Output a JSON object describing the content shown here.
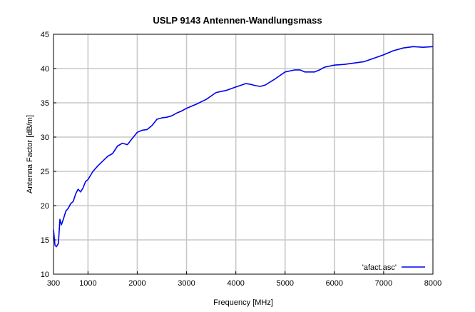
{
  "chart_data": {
    "type": "line",
    "title": "USLP 9143 Antennen-Wandlungsmass",
    "xlabel": "Frequency [MHz]",
    "ylabel": "Antenna Factor [dB/m]",
    "xlim": [
      300,
      8000
    ],
    "ylim": [
      10,
      45
    ],
    "xticks": [
      300,
      1000,
      2000,
      3000,
      4000,
      5000,
      6000,
      7000,
      8000
    ],
    "xtick_labels": [
      "300",
      "1000",
      "2000",
      "3000",
      "4000",
      "5000",
      "6000",
      "7000",
      "8000"
    ],
    "yticks": [
      10,
      15,
      20,
      25,
      30,
      35,
      40,
      45
    ],
    "ytick_labels": [
      "10",
      "15",
      "20",
      "25",
      "30",
      "35",
      "40",
      "45"
    ],
    "grid": true,
    "legend_position": "bottom-right",
    "series": [
      {
        "name": "'afact.asc'",
        "color": "#0000ee",
        "x": [
          300,
          330,
          360,
          400,
          430,
          460,
          500,
          550,
          600,
          650,
          700,
          750,
          800,
          850,
          900,
          950,
          1000,
          1100,
          1200,
          1300,
          1400,
          1500,
          1600,
          1700,
          1800,
          1900,
          2000,
          2100,
          2200,
          2300,
          2400,
          2500,
          2600,
          2700,
          2800,
          2900,
          3000,
          3200,
          3400,
          3600,
          3800,
          4000,
          4200,
          4300,
          4400,
          4500,
          4600,
          4800,
          5000,
          5200,
          5300,
          5400,
          5500,
          5600,
          5700,
          5800,
          6000,
          6200,
          6400,
          6600,
          6800,
          7000,
          7200,
          7400,
          7600,
          7800,
          8000
        ],
        "y": [
          16.5,
          14.2,
          14.0,
          14.5,
          18.0,
          17.2,
          18.0,
          19.2,
          19.6,
          20.3,
          20.6,
          21.7,
          22.4,
          22.0,
          22.6,
          23.5,
          23.8,
          25.0,
          25.8,
          26.5,
          27.2,
          27.6,
          28.7,
          29.1,
          28.9,
          29.8,
          30.7,
          31.0,
          31.1,
          31.7,
          32.6,
          32.8,
          32.9,
          33.1,
          33.5,
          33.8,
          34.2,
          34.8,
          35.5,
          36.5,
          36.8,
          37.3,
          37.8,
          37.7,
          37.5,
          37.4,
          37.6,
          38.5,
          39.5,
          39.8,
          39.8,
          39.5,
          39.5,
          39.5,
          39.8,
          40.2,
          40.5,
          40.6,
          40.8,
          41.0,
          41.5,
          42.0,
          42.6,
          43.0,
          43.2,
          43.1,
          43.2
        ]
      }
    ]
  }
}
